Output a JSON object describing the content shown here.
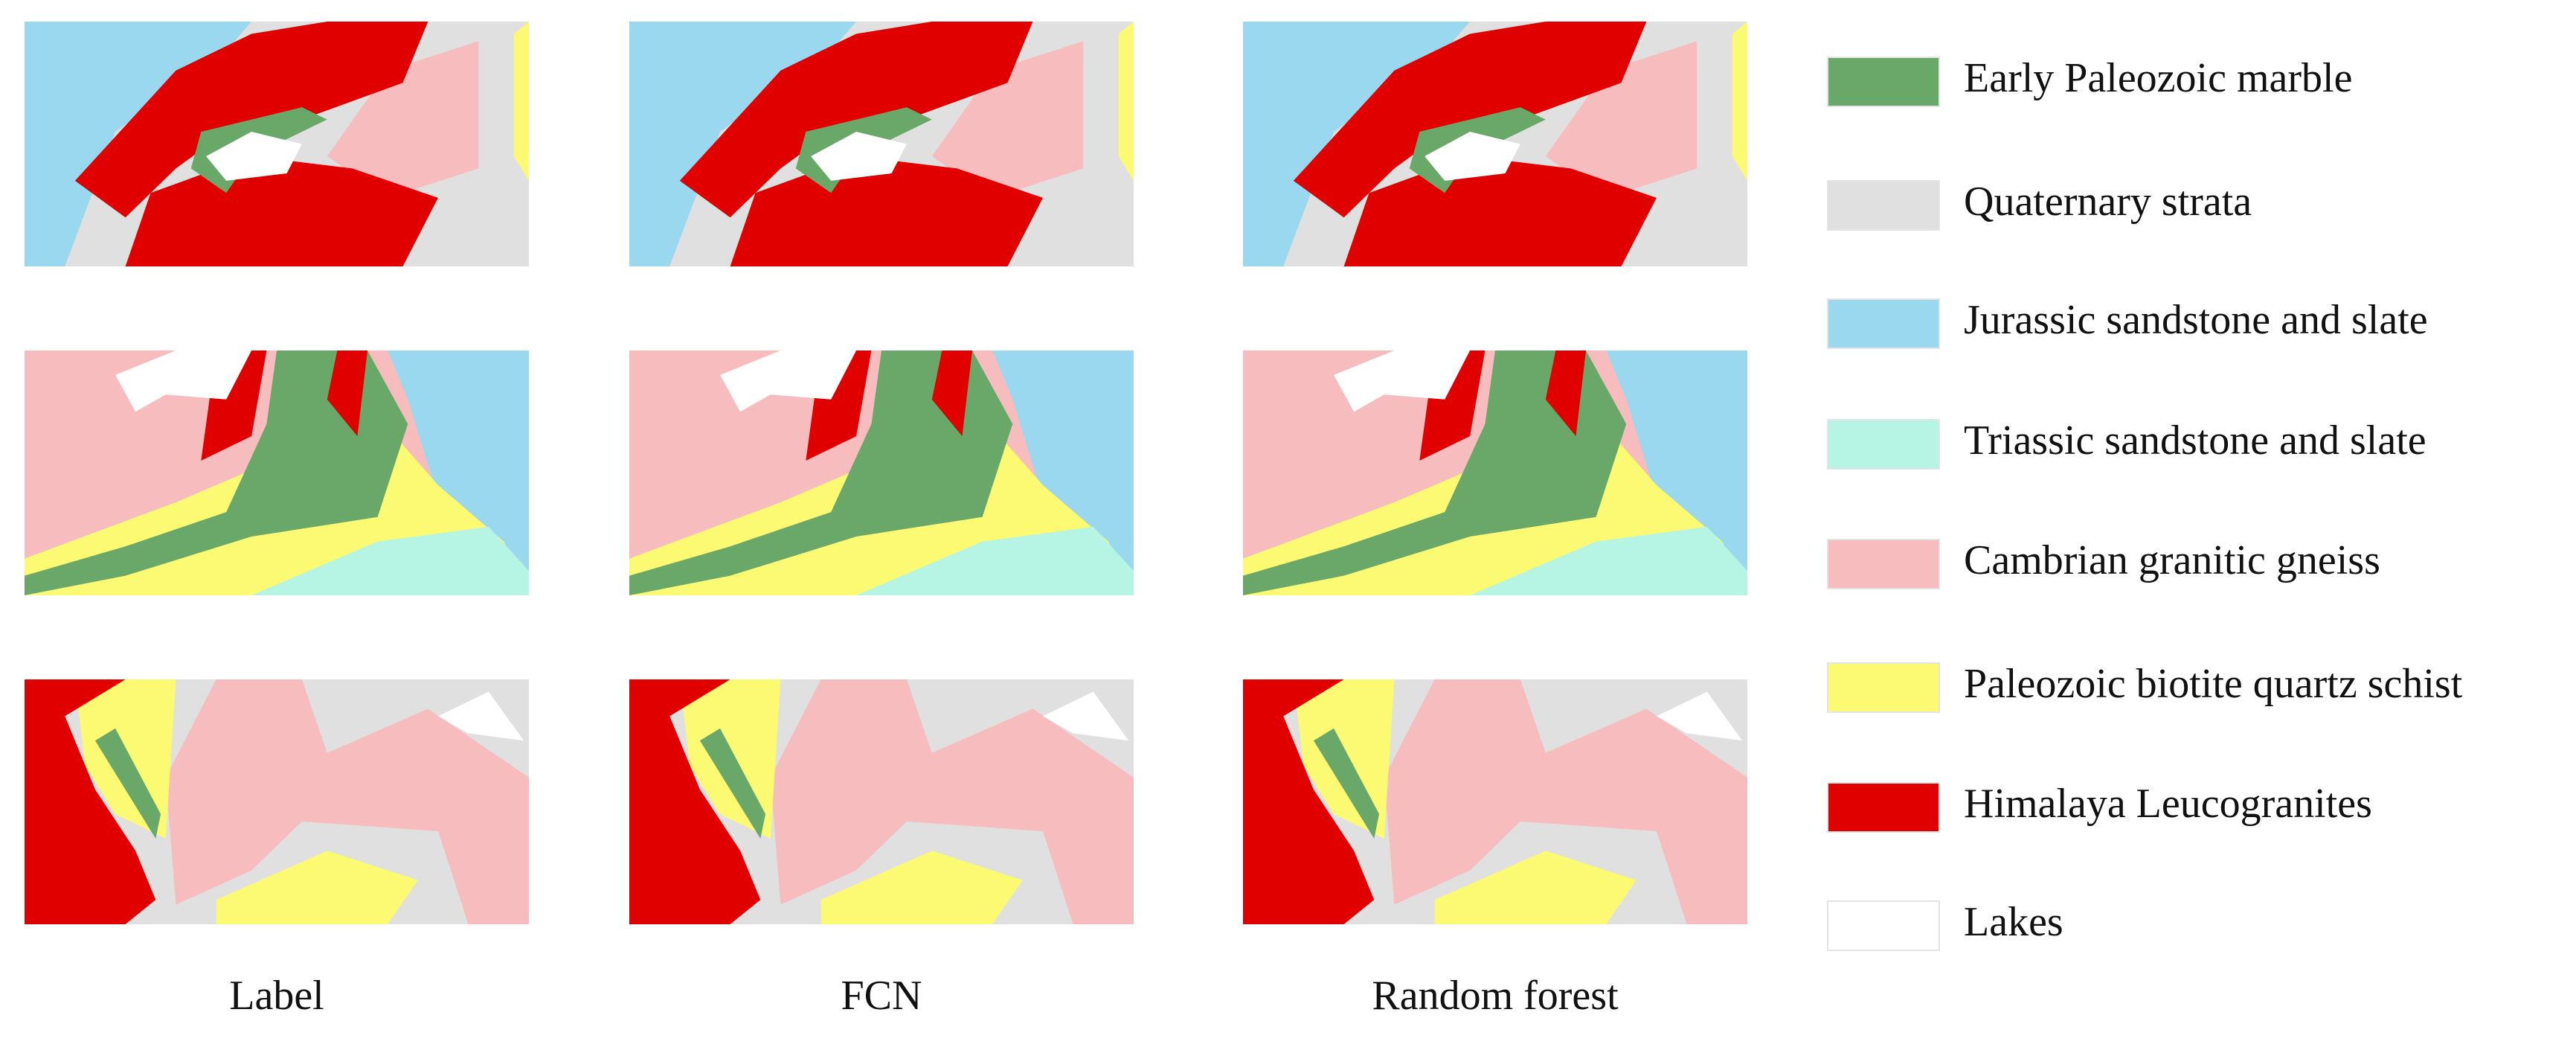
{
  "columns": [
    "Label",
    "FCN",
    "Random forest"
  ],
  "legend": [
    {
      "name": "Early Paleozoic marble",
      "color": "#6aa86a"
    },
    {
      "name": "Quaternary strata",
      "color": "#e0e0e0"
    },
    {
      "name": "Jurassic sandstone and slate",
      "color": "#9ad8ef"
    },
    {
      "name": "Triassic sandstone and slate",
      "color": "#b6f5e3"
    },
    {
      "name": "Cambrian granitic gneiss",
      "color": "#f7bcbd"
    },
    {
      "name": "Paleozoic biotite quartz schist",
      "color": "#fbfa72"
    },
    {
      "name": "Himalaya Leucogranites",
      "color": "#e00000"
    },
    {
      "name": "Lakes",
      "color": "#ffffff"
    }
  ]
}
